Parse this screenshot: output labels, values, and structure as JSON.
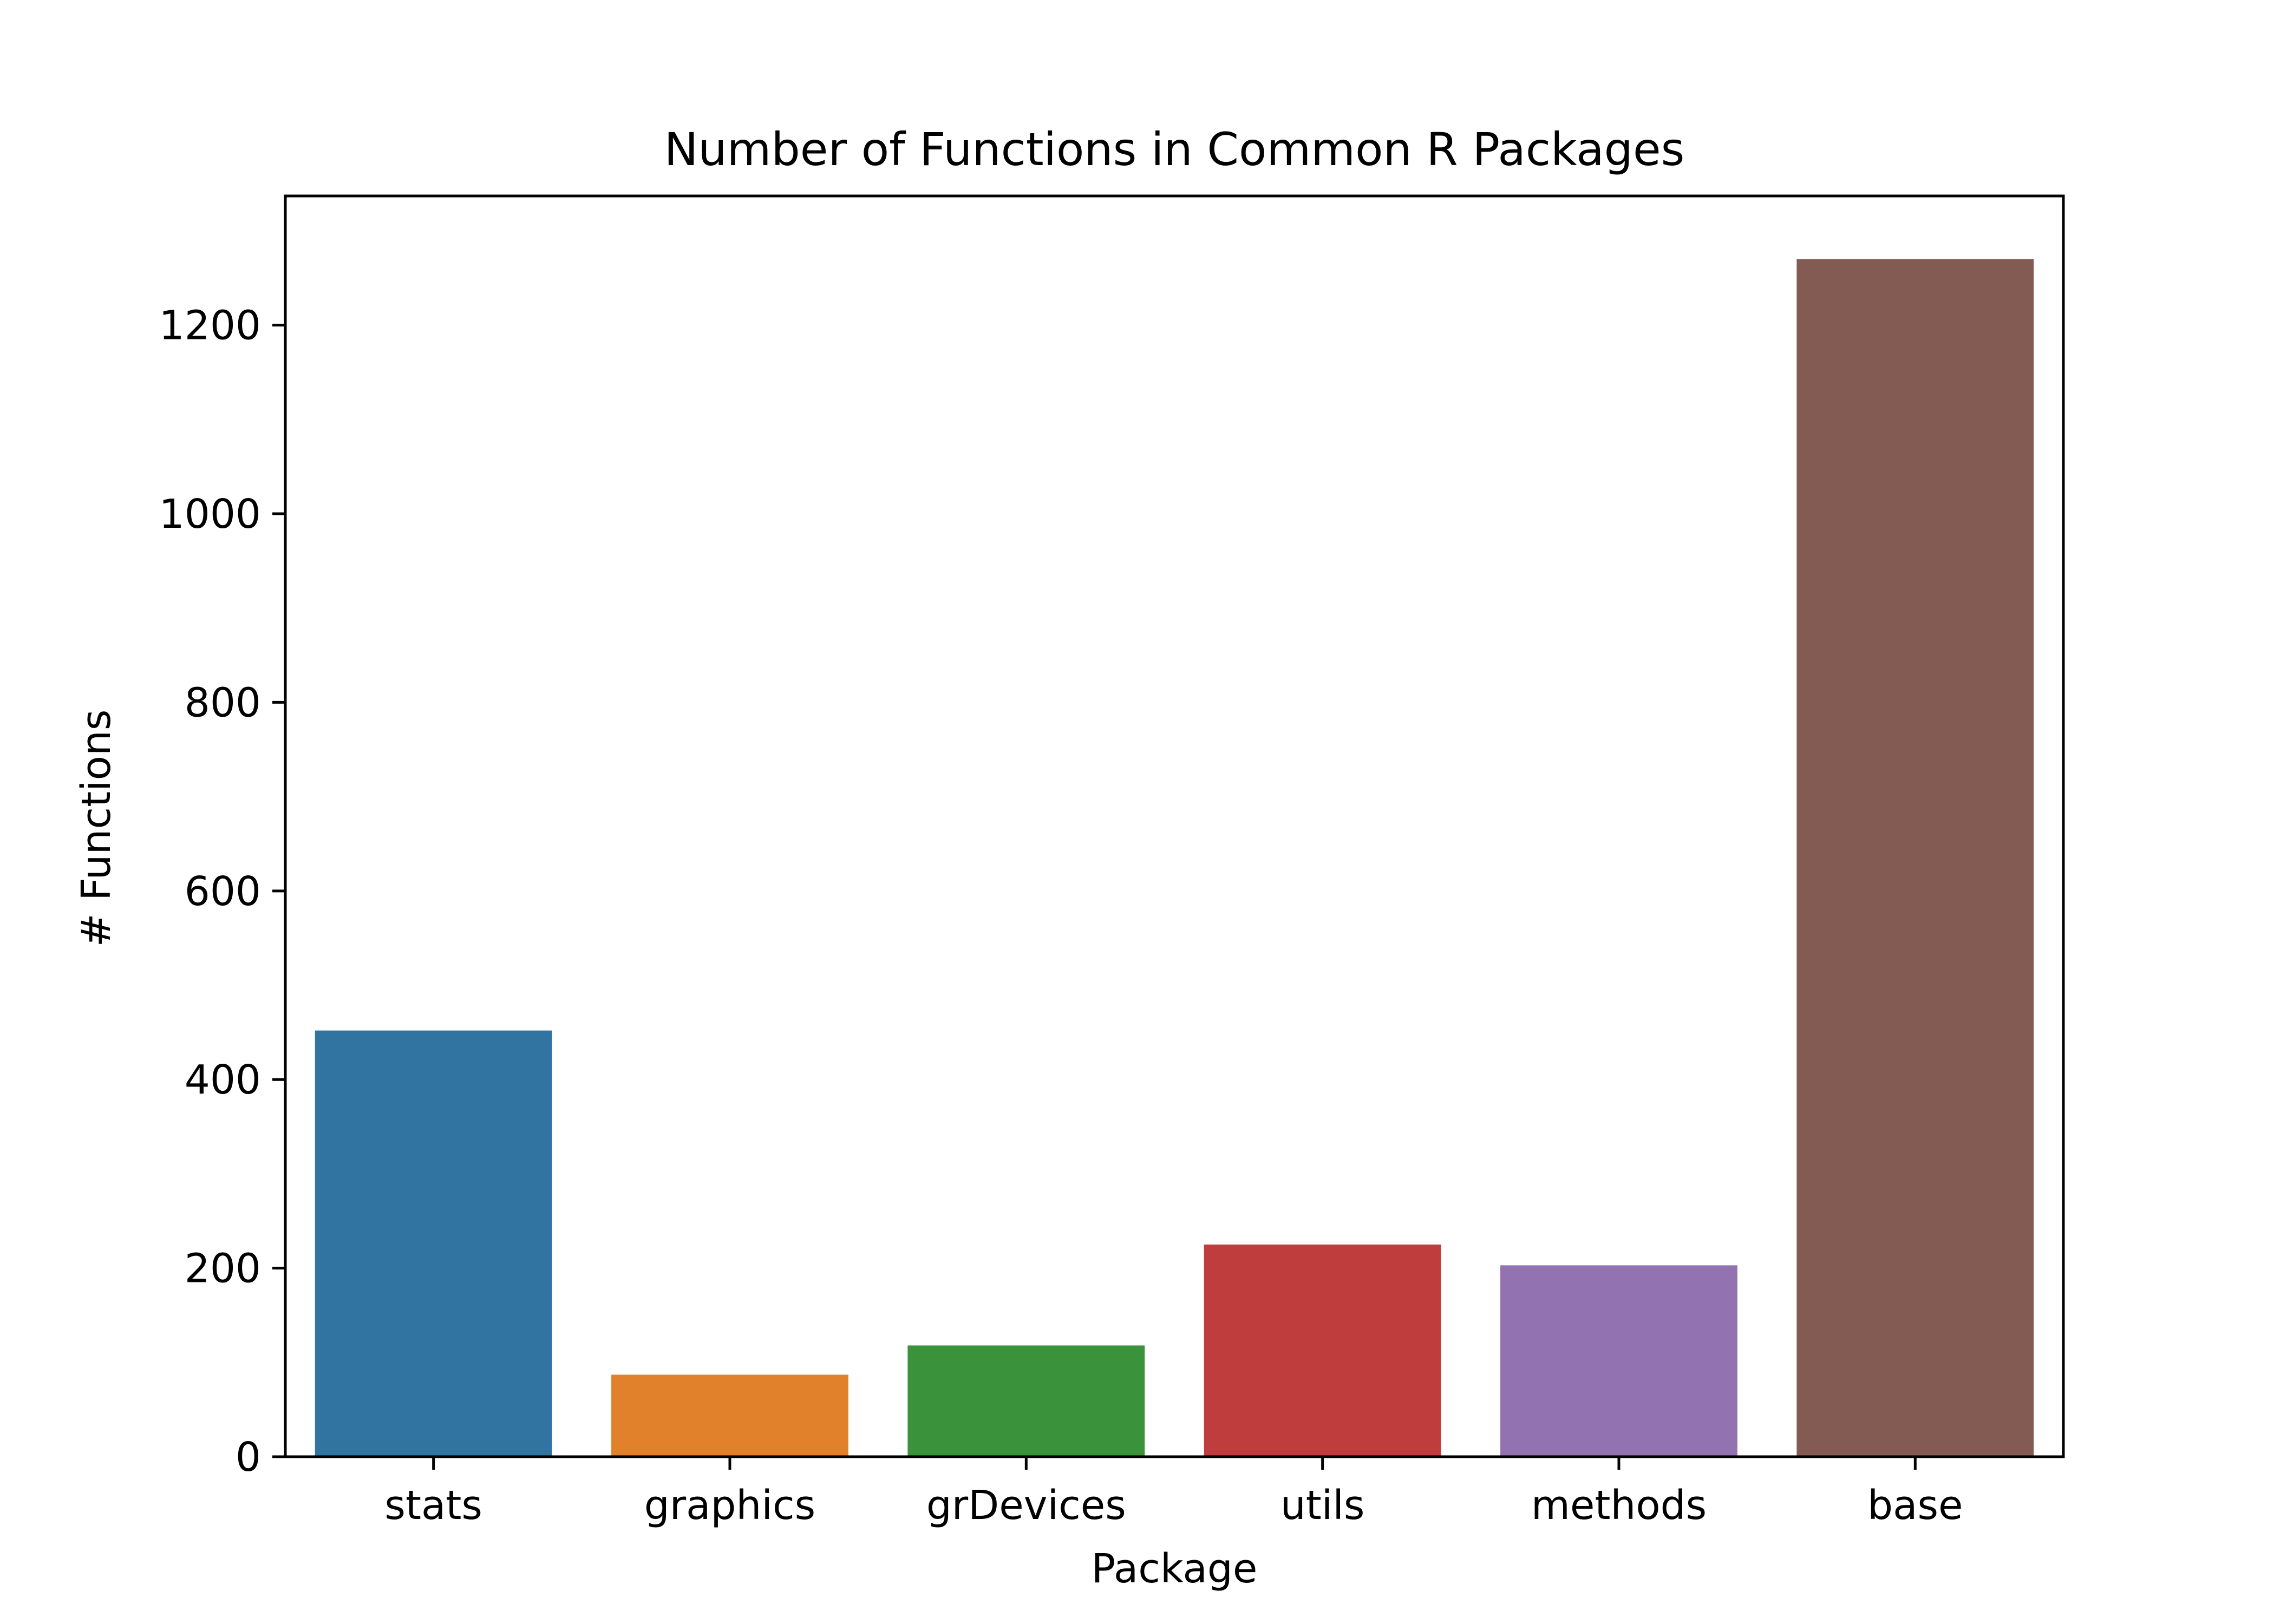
{
  "chart_data": {
    "type": "bar",
    "title": "Number of Functions in Common R Packages",
    "xlabel": "Package",
    "ylabel": "# Functions",
    "categories": [
      "stats",
      "graphics",
      "grDevices",
      "utils",
      "methods",
      "base"
    ],
    "values": [
      452,
      87,
      118,
      225,
      203,
      1270
    ],
    "colors": [
      "#3274a1",
      "#e1812c",
      "#3a923a",
      "#c03d3e",
      "#9372b2",
      "#845b53"
    ],
    "ylim": [
      0,
      1337
    ],
    "yticks": [
      0,
      200,
      400,
      600,
      800,
      1000,
      1200
    ],
    "grid": false,
    "legend": "none"
  }
}
